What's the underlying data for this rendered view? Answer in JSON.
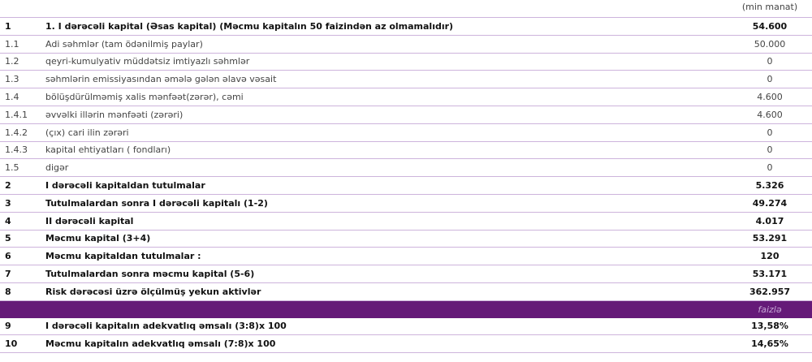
{
  "unit_label": "(min manat)",
  "rows": [
    {
      "num": "1",
      "label": "1. I dərəcəli kapital (Əsas kapital) (Məcmu kapitalın 50 faizindən az olmamalıdır)",
      "value": "54.600",
      "bold": true
    },
    {
      "num": "1.1",
      "label": "Adi səhmlər (tam ödənilmiş paylar)",
      "value": "50.000",
      "bold": false
    },
    {
      "num": "1.2",
      "label": "qeyri-kumulyativ müddətsiz imtiyazlı səhmlər",
      "value": "0",
      "bold": false
    },
    {
      "num": "1.3",
      "label": "səhmlərin emissiyasından əmələ gələn əlavə vəsait",
      "value": "0",
      "bold": false
    },
    {
      "num": "1.4",
      "label": "bölüşdürülməmiş xalis mənfəət(zərər), cəmi",
      "value": "4.600",
      "bold": false
    },
    {
      "num": "1.4.1",
      "label": "əvvəlki illərin mənfəəti (zərəri)",
      "value": "4.600",
      "bold": false
    },
    {
      "num": "1.4.2",
      "label": " (çıx) cari ilin zərəri",
      "value": "0",
      "bold": false
    },
    {
      "num": "1.4.3",
      "label": "kapital ehtiyatları ( fondları)",
      "value": "0",
      "bold": false
    },
    {
      "num": "1.5",
      "label": "digər",
      "value": "0",
      "bold": false
    },
    {
      "num": "2",
      "label": "I dərəcəli kapitaldan tutulmalar",
      "value": "5.326",
      "bold": true
    },
    {
      "num": "3",
      "label": "Tutulmalardan sonra I dərəcəli kapitalı (1-2)",
      "value": "49.274",
      "bold": true
    },
    {
      "num": "4",
      "label": "II dərəcəli kapital",
      "value": "4.017",
      "bold": true
    },
    {
      "num": "5",
      "label": "Məcmu kapital  (3+4)",
      "value": "53.291",
      "bold": true
    },
    {
      "num": "6",
      "label": "Məcmu kapitaldan tutulmalar :",
      "value": "120",
      "bold": true
    },
    {
      "num": "7",
      "label": "Tutulmalardan sonra məcmu kapital (5-6)",
      "value": "53.171",
      "bold": true
    },
    {
      "num": "8",
      "label": "Risk dərəcəsi üzrə ölçülmüş yekun aktivlər",
      "value": "362.957",
      "bold": true
    }
  ],
  "band_label": "faizlə",
  "band_color": "#651a78",
  "ratio_rows": [
    {
      "num": "9",
      "label": "I dərəcəli kapitalın adekvatlıq əmsalı  (3:8)x 100",
      "value": "13,58%"
    },
    {
      "num": "10",
      "label": "Məcmu kapitalın adekvatlıq əmsalı (7:8)x 100",
      "value": "14,65%"
    }
  ]
}
